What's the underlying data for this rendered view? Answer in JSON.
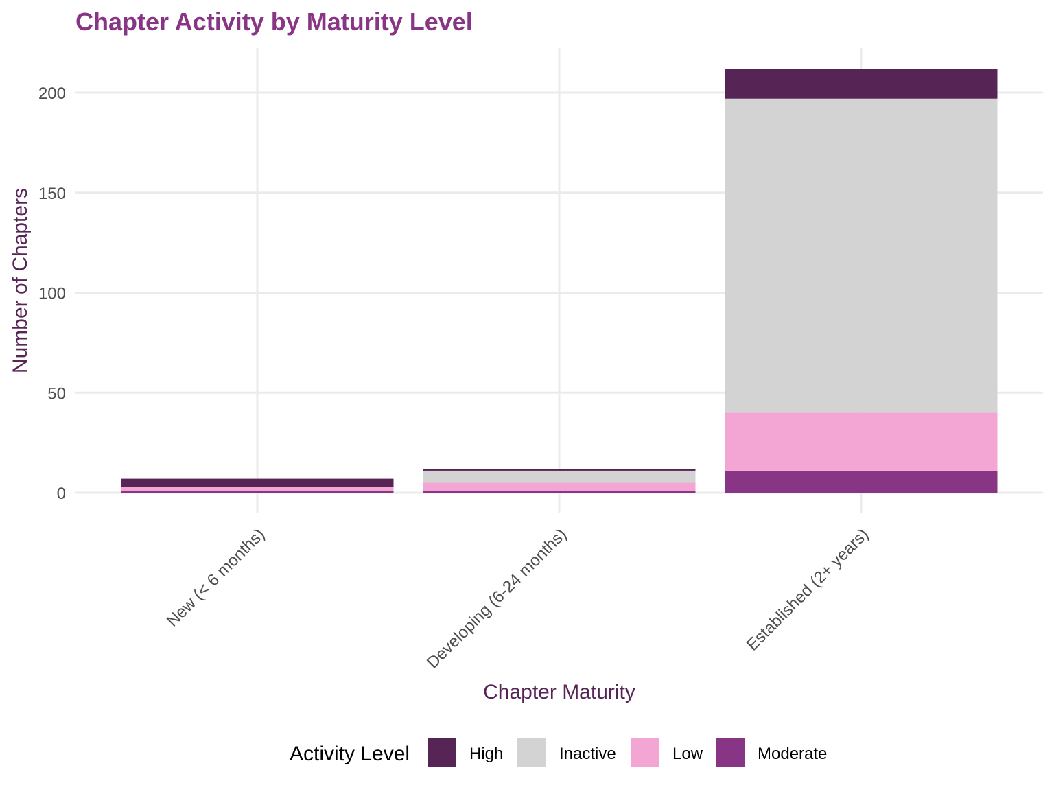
{
  "chart_data": {
    "type": "bar",
    "stacked": true,
    "title": "Chapter Activity by Maturity Level",
    "xlabel": "Chapter Maturity",
    "ylabel": "Number of Chapters",
    "ylim": [
      0,
      220
    ],
    "yticks": [
      0,
      50,
      100,
      150,
      200
    ],
    "grid": true,
    "categories": [
      "New (< 6 months)",
      "Developing (6-24 months)",
      "Established (2+ years)"
    ],
    "legend_title": "Activity Level",
    "legend_position": "bottom",
    "series": [
      {
        "name": "Moderate",
        "color": "#883585",
        "values": [
          1,
          1,
          11
        ]
      },
      {
        "name": "Low",
        "color": "#F3A6D4",
        "values": [
          2,
          4,
          29
        ]
      },
      {
        "name": "Inactive",
        "color": "#D3D3D3",
        "values": [
          0,
          6,
          157
        ]
      },
      {
        "name": "High",
        "color": "#572456",
        "values": [
          4,
          1,
          15
        ]
      }
    ],
    "legend_order": [
      "High",
      "Inactive",
      "Low",
      "Moderate"
    ]
  }
}
